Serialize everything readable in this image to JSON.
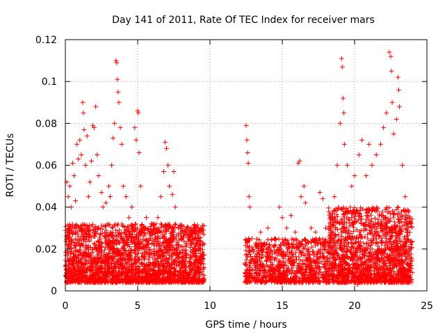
{
  "chart_data": {
    "type": "scatter",
    "title": "Day 141 of 2011, Rate Of TEC Index for receiver mars",
    "xlabel": "GPS time / hours",
    "ylabel": "ROTI / TECUs",
    "xlim": [
      0,
      25
    ],
    "ylim": [
      0,
      0.12
    ],
    "x_ticks": [
      0,
      5,
      10,
      15,
      20,
      25
    ],
    "y_ticks": [
      0,
      0.02,
      0.04,
      0.06,
      0.08,
      0.1,
      0.12
    ],
    "grid": true,
    "marker": "+",
    "color": "#ff0000",
    "series": [
      {
        "points": [
          [
            0.1,
            0.052
          ],
          [
            0.2,
            0.045
          ],
          [
            0.3,
            0.05
          ],
          [
            0.4,
            0.04
          ],
          [
            0.5,
            0.061
          ],
          [
            0.6,
            0.055
          ],
          [
            0.7,
            0.043
          ],
          [
            0.8,
            0.07
          ],
          [
            0.9,
            0.063
          ],
          [
            1.0,
            0.072
          ],
          [
            1.1,
            0.065
          ],
          [
            1.2,
            0.09
          ],
          [
            1.25,
            0.085
          ],
          [
            1.3,
            0.077
          ],
          [
            1.4,
            0.06
          ],
          [
            1.5,
            0.074
          ],
          [
            1.6,
            0.045
          ],
          [
            1.7,
            0.052
          ],
          [
            1.8,
            0.062
          ],
          [
            1.9,
            0.079
          ],
          [
            2.0,
            0.078
          ],
          [
            2.1,
            0.088
          ],
          [
            2.2,
            0.065
          ],
          [
            2.3,
            0.055
          ],
          [
            2.5,
            0.047
          ],
          [
            2.6,
            0.04
          ],
          [
            2.8,
            0.042
          ],
          [
            3.0,
            0.05
          ],
          [
            3.1,
            0.045
          ],
          [
            3.2,
            0.06
          ],
          [
            3.3,
            0.073
          ],
          [
            3.4,
            0.08
          ],
          [
            3.5,
            0.11
          ],
          [
            3.55,
            0.109
          ],
          [
            3.6,
            0.101
          ],
          [
            3.65,
            0.095
          ],
          [
            3.7,
            0.09
          ],
          [
            3.8,
            0.078
          ],
          [
            3.9,
            0.07
          ],
          [
            4.0,
            0.05
          ],
          [
            4.2,
            0.045
          ],
          [
            4.4,
            0.035
          ],
          [
            4.6,
            0.04
          ],
          [
            4.8,
            0.078
          ],
          [
            4.9,
            0.072
          ],
          [
            5.0,
            0.086
          ],
          [
            5.05,
            0.085
          ],
          [
            5.1,
            0.066
          ],
          [
            5.2,
            0.05
          ],
          [
            5.4,
            0.03
          ],
          [
            5.6,
            0.035
          ],
          [
            5.8,
            0.028
          ],
          [
            6.0,
            0.032
          ],
          [
            6.2,
            0.03
          ],
          [
            6.4,
            0.035
          ],
          [
            6.6,
            0.045
          ],
          [
            6.8,
            0.057
          ],
          [
            6.9,
            0.071
          ],
          [
            7.0,
            0.068
          ],
          [
            7.1,
            0.06
          ],
          [
            7.2,
            0.05
          ],
          [
            7.4,
            0.046
          ],
          [
            7.5,
            0.057
          ],
          [
            7.6,
            0.04
          ],
          [
            7.8,
            0.03
          ],
          [
            8.0,
            0.025
          ],
          [
            8.2,
            0.028
          ],
          [
            8.5,
            0.03
          ],
          [
            8.8,
            0.027
          ],
          [
            9.0,
            0.025
          ],
          [
            9.3,
            0.024
          ],
          [
            9.5,
            0.022
          ],
          [
            12.5,
            0.079
          ],
          [
            12.55,
            0.072
          ],
          [
            12.6,
            0.066
          ],
          [
            12.65,
            0.061
          ],
          [
            12.7,
            0.045
          ],
          [
            12.75,
            0.04
          ],
          [
            12.9,
            0.025
          ],
          [
            13.2,
            0.022
          ],
          [
            13.5,
            0.028
          ],
          [
            14.0,
            0.03
          ],
          [
            14.5,
            0.025
          ],
          [
            14.8,
            0.04
          ],
          [
            15.0,
            0.035
          ],
          [
            15.3,
            0.03
          ],
          [
            15.6,
            0.036
          ],
          [
            15.9,
            0.028
          ],
          [
            16.1,
            0.061
          ],
          [
            16.2,
            0.062
          ],
          [
            16.3,
            0.045
          ],
          [
            16.5,
            0.05
          ],
          [
            16.6,
            0.042
          ],
          [
            17.0,
            0.03
          ],
          [
            17.3,
            0.028
          ],
          [
            17.6,
            0.047
          ],
          [
            17.8,
            0.044
          ],
          [
            18.0,
            0.03
          ],
          [
            18.3,
            0.035
          ],
          [
            18.6,
            0.045
          ],
          [
            18.8,
            0.06
          ],
          [
            19.0,
            0.08
          ],
          [
            19.1,
            0.111
          ],
          [
            19.15,
            0.107
          ],
          [
            19.2,
            0.092
          ],
          [
            19.25,
            0.085
          ],
          [
            19.3,
            0.07
          ],
          [
            19.5,
            0.06
          ],
          [
            19.8,
            0.05
          ],
          [
            20.0,
            0.055
          ],
          [
            20.3,
            0.065
          ],
          [
            20.5,
            0.072
          ],
          [
            20.8,
            0.055
          ],
          [
            21.0,
            0.07
          ],
          [
            21.2,
            0.06
          ],
          [
            21.5,
            0.065
          ],
          [
            21.8,
            0.07
          ],
          [
            22.0,
            0.078
          ],
          [
            22.2,
            0.085
          ],
          [
            22.4,
            0.114
          ],
          [
            22.5,
            0.112
          ],
          [
            22.55,
            0.105
          ],
          [
            22.6,
            0.09
          ],
          [
            22.7,
            0.075
          ],
          [
            22.9,
            0.082
          ],
          [
            23.0,
            0.102
          ],
          [
            23.05,
            0.096
          ],
          [
            23.1,
            0.088
          ],
          [
            23.3,
            0.06
          ],
          [
            23.5,
            0.045
          ],
          [
            23.7,
            0.03
          ],
          [
            23.9,
            0.02
          ],
          [
            20.2,
            0.003
          ],
          [
            20.4,
            0.008
          ]
        ]
      }
    ],
    "bands": [
      {
        "x": [
          0.0,
          9.6
        ],
        "y_low": [
          0.004,
          0.032
        ],
        "density": 2400
      },
      {
        "x": [
          12.4,
          18.2
        ],
        "y_low": [
          0.004,
          0.025
        ],
        "density": 900
      },
      {
        "x": [
          18.2,
          24.0
        ],
        "y_low": [
          0.004,
          0.04
        ],
        "density": 1600
      }
    ]
  }
}
